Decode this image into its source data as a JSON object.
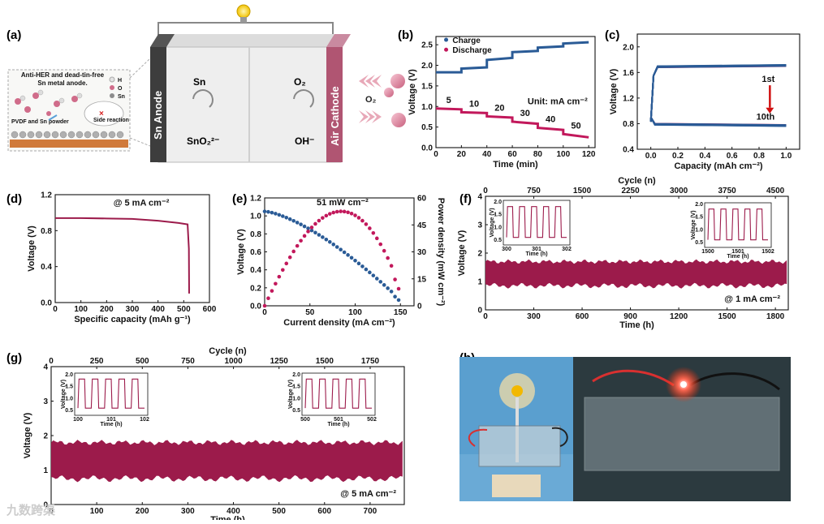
{
  "colors": {
    "charge": "#2a5b96",
    "discharge": "#c2185b",
    "cycle": "#9c1b4b",
    "cathode": "#b05572",
    "photo_left": "#5a9fcf",
    "photo_right": "#2c3a3f"
  },
  "panel_a": {
    "label": "(a)",
    "callout_title": "Anti-HER and dead-tin-free Sn metal anode.",
    "legend_h": "H",
    "legend_o": "O",
    "legend_sn": "Sn",
    "pvdf": "PVDF and Sn powder",
    "side_reaction": "Side reaction",
    "anode": "Sn Anode",
    "cathode": "Air Cathode",
    "sn": "Sn",
    "sno2": "SnO₂²⁻",
    "o2": "O₂",
    "oh": "OH⁻",
    "o2_gas": "O₂"
  },
  "chart_data": [
    {
      "id": "b",
      "label": "(b)",
      "type": "line",
      "title": "",
      "xlabel": "Time (min)",
      "ylabel": "Voltage (V)",
      "xlim": [
        0,
        125
      ],
      "ylim": [
        0.0,
        2.7
      ],
      "xticks": [
        0,
        20,
        40,
        60,
        80,
        100,
        120
      ],
      "yticks": [
        0.0,
        0.5,
        1.0,
        1.5,
        2.0,
        2.5
      ],
      "ytick_labels": [
        "0.0",
        "0.5",
        "1.0",
        "1.5",
        "2.0",
        "2.5"
      ],
      "series": [
        {
          "name": "Charge",
          "x": [
            0,
            20,
            20,
            40,
            40,
            60,
            60,
            80,
            80,
            100,
            100,
            120
          ],
          "y": [
            1.83,
            1.83,
            1.92,
            1.95,
            2.13,
            2.18,
            2.32,
            2.35,
            2.43,
            2.46,
            2.53,
            2.56
          ]
        },
        {
          "name": "Discharge",
          "x": [
            0,
            20,
            20,
            40,
            40,
            60,
            60,
            80,
            80,
            100,
            100,
            120
          ],
          "y": [
            0.95,
            0.93,
            0.86,
            0.84,
            0.76,
            0.73,
            0.63,
            0.58,
            0.48,
            0.43,
            0.33,
            0.25
          ]
        }
      ],
      "step_labels": [
        "5",
        "10",
        "20",
        "30",
        "40",
        "50"
      ],
      "unit_annotation": "Unit: mA cm⁻²"
    },
    {
      "id": "c",
      "label": "(c)",
      "type": "line",
      "xlabel": "Capacity (mAh cm⁻²)",
      "ylabel": "Voltage (V)",
      "xlim": [
        -0.1,
        1.1
      ],
      "ylim": [
        0.4,
        2.2
      ],
      "xticks": [
        0.0,
        0.2,
        0.4,
        0.6,
        0.8,
        1.0
      ],
      "xtick_labels": [
        "0.0",
        "0.2",
        "0.4",
        "0.6",
        "0.8",
        "1.0"
      ],
      "yticks": [
        0.4,
        0.8,
        1.2,
        1.6,
        2.0
      ],
      "ytick_labels": [
        "0.4",
        "0.8",
        "1.2",
        "1.6",
        "2.0"
      ],
      "charge_voltage": 1.68,
      "discharge_voltage": 0.78,
      "annotations": [
        "1st",
        "10th"
      ]
    },
    {
      "id": "d",
      "label": "(d)",
      "type": "line",
      "xlabel": "Specific capacity (mAh g⁻¹)",
      "ylabel": "Voltage (V)",
      "xlim": [
        0,
        600
      ],
      "ylim": [
        0.0,
        1.2
      ],
      "xticks": [
        0,
        100,
        200,
        300,
        400,
        500,
        600
      ],
      "yticks": [
        0.0,
        0.4,
        0.8,
        1.2
      ],
      "ytick_labels": [
        "0.0",
        "0.4",
        "0.8",
        "1.2"
      ],
      "x": [
        0,
        50,
        100,
        200,
        300,
        400,
        480,
        515,
        520,
        521
      ],
      "y": [
        0.94,
        0.94,
        0.94,
        0.935,
        0.93,
        0.91,
        0.885,
        0.87,
        0.6,
        0.1
      ],
      "annotation": "@ 5 mA cm⁻²"
    },
    {
      "id": "e",
      "label": "(e)",
      "type": "scatter",
      "xlabel": "Current density (mA cm⁻²)",
      "ylabel": "Voltage (V)",
      "ylabel_right": "Power density (mW cm⁻²)",
      "xlim": [
        0,
        165
      ],
      "ylim": [
        0.0,
        1.2
      ],
      "y2lim": [
        0,
        60
      ],
      "xticks": [
        0,
        50,
        100,
        150
      ],
      "yticks": [
        0.0,
        0.2,
        0.4,
        0.6,
        0.8,
        1.0,
        1.2
      ],
      "ytick_labels": [
        "0.0",
        "0.2",
        "0.4",
        "0.6",
        "0.8",
        "1.0",
        "1.2"
      ],
      "y2ticks": [
        0,
        15,
        30,
        45,
        60
      ],
      "v0": 1.05,
      "i_max": 148,
      "peak_power": 51,
      "annotation": "51 mW cm⁻²"
    },
    {
      "id": "f",
      "label": "(f)",
      "type": "area",
      "xlabel": "Time (h)",
      "ylabel": "Voltage (V)",
      "x2label": "Cycle (n)",
      "xlim": [
        0,
        1880
      ],
      "ylim": [
        0,
        4
      ],
      "xticks": [
        0,
        300,
        600,
        900,
        1200,
        1500,
        1800
      ],
      "yticks": [
        0,
        1,
        2,
        3,
        4
      ],
      "x2ticks": [
        0,
        750,
        1500,
        2250,
        3000,
        3750,
        4500
      ],
      "x2lim": [
        0,
        4700
      ],
      "charge_band": [
        1.45,
        1.7
      ],
      "discharge_band": [
        0.85,
        1.15
      ],
      "annotation": "@ 1 mA cm⁻²",
      "inset1": {
        "xticks": [
          "300",
          "301",
          "302"
        ],
        "yticks": [
          "0.5",
          "1.0",
          "1.5",
          "2.0"
        ],
        "xlabel": "Time (h)",
        "ylabel": "Voltage (V)"
      },
      "inset2": {
        "xticks": [
          "1500",
          "1501",
          "1502"
        ],
        "yticks": [
          "0.5",
          "1.0",
          "1.5",
          "2.0"
        ],
        "xlabel": "Time (h)",
        "ylabel": "Voltage (V)"
      }
    },
    {
      "id": "g",
      "label": "(g)",
      "type": "area",
      "xlabel": "Time (h)",
      "ylabel": "Voltage (V)",
      "x2label": "Cycle (n)",
      "xlim": [
        0,
        775
      ],
      "ylim": [
        0,
        4
      ],
      "xticks": [
        0,
        100,
        200,
        300,
        400,
        500,
        600,
        700
      ],
      "yticks": [
        0,
        1,
        2,
        3,
        4
      ],
      "x2ticks": [
        0,
        250,
        500,
        750,
        1000,
        1250,
        1500,
        1750
      ],
      "x2lim": [
        0,
        1937
      ],
      "charge_band": [
        1.6,
        1.8
      ],
      "discharge_band": [
        0.75,
        1.0
      ],
      "annotation": "@ 5 mA cm⁻²",
      "inset1": {
        "xticks": [
          "100",
          "101",
          "102"
        ],
        "yticks": [
          "0.5",
          "1.0",
          "1.5",
          "2.0"
        ],
        "xlabel": "Time (h)",
        "ylabel": "Voltage (V)"
      },
      "inset2": {
        "xticks": [
          "500",
          "501",
          "502"
        ],
        "yticks": [
          "0.5",
          "1.0",
          "1.5",
          "2.0"
        ],
        "xlabel": "Time (h)",
        "ylabel": "Voltage (V)"
      }
    }
  ],
  "panel_h": {
    "label": "(h)"
  },
  "watermark": "九数跨渠"
}
